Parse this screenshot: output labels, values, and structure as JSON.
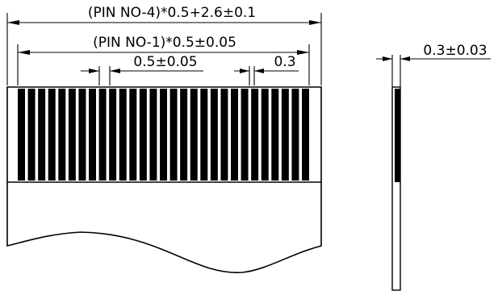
{
  "dimensions": {
    "overall_width": "(PIN NO-4)*0.5+2.6±0.1",
    "pin_span": "(PIN NO-1)*0.5±0.05",
    "pin_pitch": "0.5±0.05",
    "pin_width": "0.3",
    "thickness": "0.3±0.03"
  },
  "colors": {
    "line": "#000000",
    "background": "#ffffff"
  }
}
